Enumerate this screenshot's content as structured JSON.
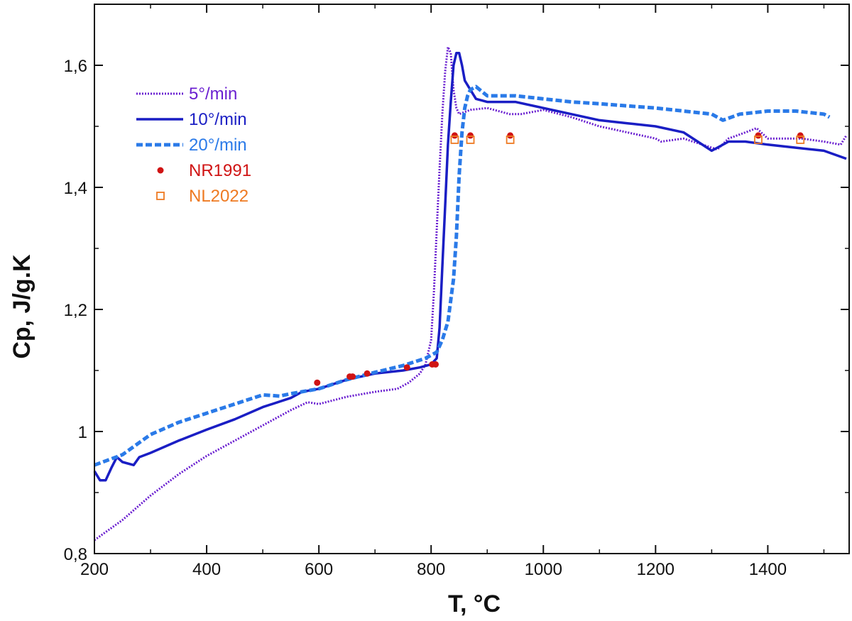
{
  "chart_data": {
    "type": "line",
    "title": "",
    "xlabel": "T, °C",
    "ylabel": "Cp, J/g.K",
    "xlim": [
      200,
      1545
    ],
    "ylim": [
      0.8,
      1.7
    ],
    "xticks": [
      200,
      400,
      600,
      800,
      1000,
      1200,
      1400
    ],
    "xtick_labels": [
      "200",
      "400",
      "600",
      "800",
      "1000",
      "1200",
      "1400"
    ],
    "yticks": [
      0.8,
      1.0,
      1.2,
      1.4,
      1.6
    ],
    "ytick_labels": [
      "0,8",
      "1",
      "1,2",
      "1,4",
      "1,6"
    ],
    "grid": false,
    "legend_position": "upper-left",
    "series": [
      {
        "name": "5°/min",
        "color": "#6a1fd0",
        "style": "dotted",
        "x": [
          200,
          250,
          300,
          350,
          400,
          450,
          500,
          550,
          580,
          600,
          650,
          700,
          740,
          760,
          780,
          790,
          800,
          805,
          810,
          815,
          820,
          825,
          830,
          835,
          840,
          845,
          850,
          870,
          900,
          940,
          960,
          1000,
          1050,
          1100,
          1150,
          1200,
          1210,
          1250,
          1300,
          1310,
          1330,
          1360,
          1380,
          1400,
          1430,
          1460,
          1500,
          1530,
          1540
        ],
        "y": [
          0.822,
          0.855,
          0.895,
          0.93,
          0.96,
          0.985,
          1.01,
          1.035,
          1.048,
          1.045,
          1.057,
          1.065,
          1.07,
          1.08,
          1.095,
          1.11,
          1.15,
          1.23,
          1.33,
          1.43,
          1.52,
          1.59,
          1.63,
          1.62,
          1.56,
          1.53,
          1.52,
          1.527,
          1.53,
          1.52,
          1.52,
          1.527,
          1.515,
          1.5,
          1.49,
          1.48,
          1.475,
          1.48,
          1.465,
          1.462,
          1.48,
          1.49,
          1.497,
          1.48,
          1.48,
          1.48,
          1.475,
          1.47,
          1.485
        ]
      },
      {
        "name": "10°/min",
        "color": "#1a1ec4",
        "style": "solid",
        "x": [
          200,
          210,
          220,
          230,
          240,
          250,
          270,
          280,
          300,
          350,
          400,
          450,
          500,
          550,
          570,
          600,
          650,
          700,
          750,
          780,
          800,
          810,
          815,
          820,
          825,
          830,
          835,
          840,
          845,
          850,
          855,
          860,
          870,
          880,
          900,
          950,
          1000,
          1050,
          1100,
          1150,
          1200,
          1250,
          1300,
          1310,
          1330,
          1360,
          1400,
          1450,
          1500,
          1540
        ],
        "y": [
          0.935,
          0.92,
          0.92,
          0.94,
          0.958,
          0.95,
          0.945,
          0.958,
          0.965,
          0.985,
          1.003,
          1.02,
          1.04,
          1.055,
          1.065,
          1.07,
          1.085,
          1.095,
          1.1,
          1.105,
          1.11,
          1.12,
          1.17,
          1.27,
          1.37,
          1.47,
          1.54,
          1.6,
          1.62,
          1.62,
          1.6,
          1.575,
          1.56,
          1.545,
          1.54,
          1.54,
          1.53,
          1.52,
          1.51,
          1.505,
          1.5,
          1.49,
          1.46,
          1.465,
          1.475,
          1.475,
          1.47,
          1.465,
          1.46,
          1.447
        ]
      },
      {
        "name": "20°/min",
        "color": "#2a7ae8",
        "style": "dashed",
        "x": [
          200,
          250,
          300,
          350,
          400,
          450,
          500,
          530,
          550,
          600,
          650,
          700,
          750,
          790,
          810,
          820,
          830,
          840,
          845,
          850,
          855,
          860,
          865,
          870,
          880,
          900,
          950,
          1000,
          1050,
          1100,
          1200,
          1250,
          1300,
          1320,
          1350,
          1400,
          1450,
          1500,
          1510
        ],
        "y": [
          0.945,
          0.962,
          0.995,
          1.015,
          1.03,
          1.045,
          1.06,
          1.058,
          1.062,
          1.07,
          1.085,
          1.097,
          1.108,
          1.12,
          1.13,
          1.15,
          1.18,
          1.25,
          1.32,
          1.42,
          1.49,
          1.53,
          1.55,
          1.56,
          1.565,
          1.55,
          1.55,
          1.545,
          1.54,
          1.537,
          1.53,
          1.525,
          1.52,
          1.51,
          1.52,
          1.525,
          1.525,
          1.52,
          1.515
        ]
      },
      {
        "name": "NR1991",
        "color": "#d01414",
        "style": "markers-filled-circle",
        "x": [
          597,
          655,
          660,
          686,
          757,
          802,
          808,
          842,
          870,
          941,
          1383,
          1458
        ],
        "y": [
          1.08,
          1.09,
          1.09,
          1.095,
          1.105,
          1.11,
          1.11,
          1.485,
          1.485,
          1.485,
          1.485,
          1.485
        ]
      },
      {
        "name": "NL2022",
        "color": "#ee7a22",
        "style": "markers-open-square",
        "x": [
          842,
          870,
          941,
          1383,
          1458
        ],
        "y": [
          1.478,
          1.478,
          1.478,
          1.478,
          1.478
        ]
      }
    ]
  }
}
